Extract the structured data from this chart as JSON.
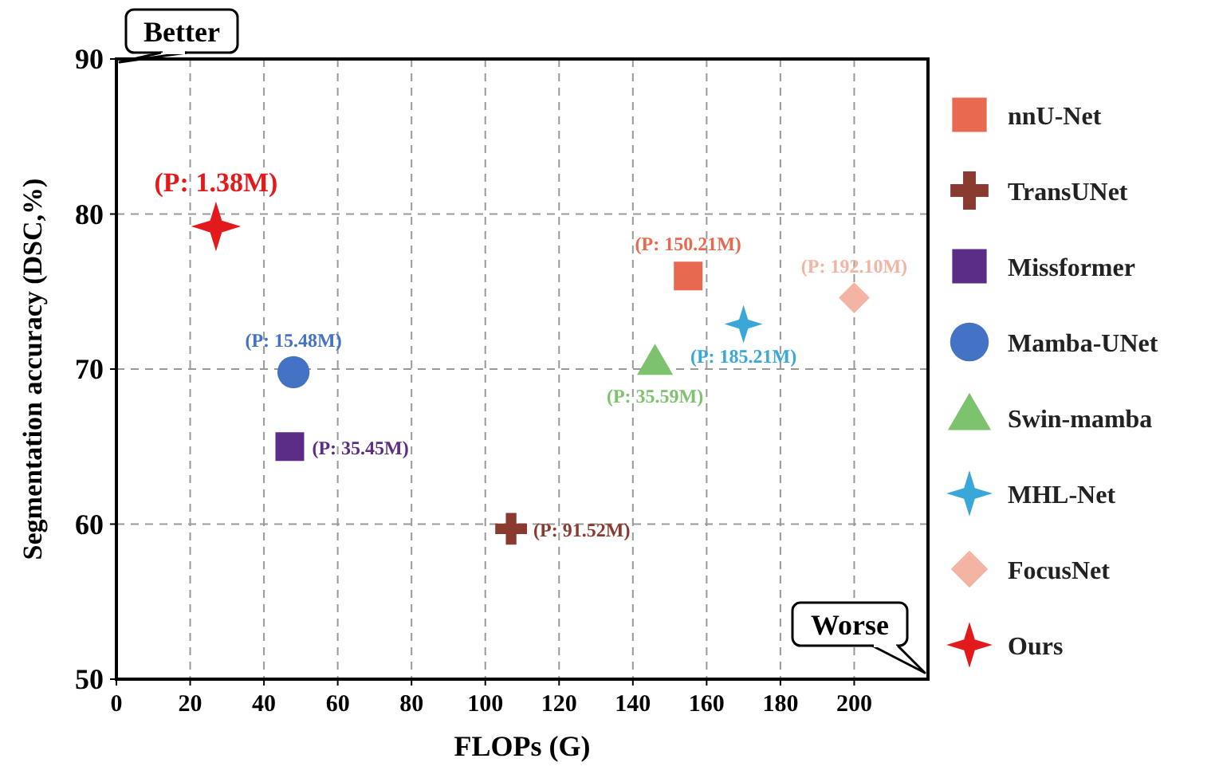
{
  "chart_data": {
    "type": "scatter",
    "xlabel": "FLOPs (G)",
    "ylabel": "Segmentation accuracy (DSC,%)",
    "xlim": [
      0,
      220
    ],
    "ylim": [
      50,
      90
    ],
    "xticks": [
      0,
      20,
      40,
      60,
      80,
      100,
      120,
      140,
      160,
      180,
      200
    ],
    "yticks": [
      50,
      60,
      70,
      80,
      90
    ],
    "grid": true,
    "legend": "right",
    "annotations": [
      "Better",
      "Worse",
      {
        "text": "(P: 150.21M)",
        "x": 155,
        "y": 76.0
      },
      {
        "text": "(P: 91.52M)",
        "x": 107,
        "y": 59.7
      },
      {
        "text": "(P: 35.45M)",
        "x": 47,
        "y": 65.0
      },
      {
        "text": "(P: 15.48M)",
        "x": 48,
        "y": 69.8
      },
      {
        "text": "(P: 35.59M)",
        "x": 146,
        "y": 70.3
      },
      {
        "text": "(P: 185.21M)",
        "x": 170,
        "y": 72.9
      },
      {
        "text": "(P: 192.10M)",
        "x": 200,
        "y": 74.6
      },
      {
        "text": "(P: 1.38M)",
        "x": 27,
        "y": 79.2
      }
    ],
    "series": [
      {
        "name": "nnU-Net",
        "color": "#e8694f",
        "marker": "square",
        "x": [
          155
        ],
        "values": [
          76.0
        ]
      },
      {
        "name": "TransUNet",
        "color": "#8b3a2f",
        "marker": "cross",
        "x": [
          107
        ],
        "values": [
          59.7
        ]
      },
      {
        "name": "Missformer",
        "color": "#5b2d86",
        "marker": "square",
        "x": [
          47
        ],
        "values": [
          65.0
        ]
      },
      {
        "name": "Mamba-UNet",
        "color": "#4472c4",
        "marker": "circle",
        "x": [
          48
        ],
        "values": [
          69.8
        ]
      },
      {
        "name": "Swin-mamba",
        "color": "#7dc36e",
        "marker": "triangle",
        "x": [
          146
        ],
        "values": [
          70.3
        ]
      },
      {
        "name": "MHL-Net",
        "color": "#3aa7d9",
        "marker": "star",
        "x": [
          170
        ],
        "values": [
          72.9
        ]
      },
      {
        "name": "FocusNet",
        "color": "#f4b4a4",
        "marker": "diamond",
        "x": [
          200
        ],
        "values": [
          74.6
        ]
      },
      {
        "name": "Ours",
        "color": "#e31a1c",
        "marker": "star",
        "x": [
          27
        ],
        "values": [
          79.2
        ]
      }
    ]
  }
}
